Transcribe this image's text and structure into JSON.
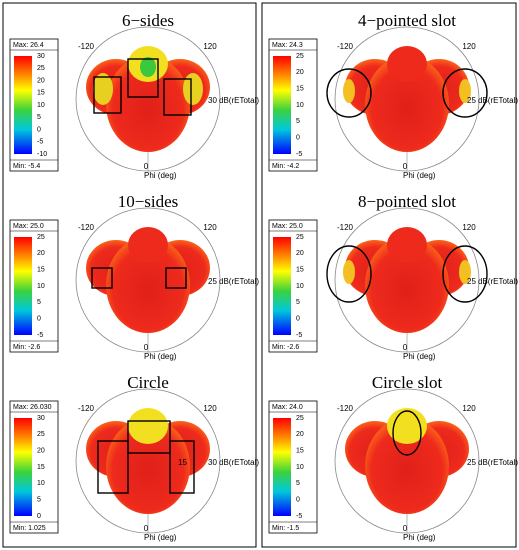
{
  "panels": [
    {
      "title": "6−sides",
      "max": "Max: 26.4",
      "min": "Min: -5.4",
      "scale": [
        "30",
        "25",
        "20",
        "15",
        "10",
        "5",
        "0",
        "-5",
        "-10"
      ],
      "minus": "-120",
      "plus": "120",
      "ring": [
        "30"
      ],
      "unit": "dB(rETotal)",
      "zero": "0",
      "axis": "Phi (deg)"
    },
    {
      "title": "10−sides",
      "max": "Max: 25.0",
      "min": "Min: -2.6",
      "scale": [
        "25",
        "20",
        "15",
        "10",
        "5",
        "0",
        "-5"
      ],
      "minus": "-120",
      "plus": "120",
      "ring": [
        "25"
      ],
      "unit": "dB(rETotal)",
      "zero": "0",
      "axis": "Phi (deg)"
    },
    {
      "title": "Circle",
      "max": "Max: 26.030",
      "min": "Min: 1.025",
      "scale": [
        "30",
        "25",
        "20",
        "15",
        "10",
        "5",
        "0"
      ],
      "minus": "-120",
      "plus": "120",
      "ring": [
        "15",
        "30"
      ],
      "unit": "dB(rETotal)",
      "zero": "0",
      "axis": "Phi (deg)"
    },
    {
      "title": "4−pointed slot",
      "max": "Max: 24.3",
      "min": "Min: -4.2",
      "scale": [
        "25",
        "20",
        "15",
        "10",
        "5",
        "0",
        "-5"
      ],
      "minus": "-120",
      "plus": "120",
      "ring": [
        "25"
      ],
      "unit": "dB(rETotal)",
      "zero": "0",
      "axis": "Phi (deg)"
    },
    {
      "title": "8−pointed slot",
      "max": "Max: 25.0",
      "min": "Min: -2.6",
      "scale": [
        "25",
        "20",
        "15",
        "10",
        "5",
        "0",
        "-5"
      ],
      "minus": "-120",
      "plus": "120",
      "ring": [
        "25"
      ],
      "unit": "dB(rETotal)",
      "zero": "0",
      "axis": "Phi (deg)"
    },
    {
      "title": "Circle slot",
      "max": "Max: 24.0",
      "min": "Min: -1.5",
      "scale": [
        "25",
        "20",
        "15",
        "10",
        "5",
        "0",
        "-5"
      ],
      "minus": "-120",
      "plus": "120",
      "ring": [
        "25"
      ],
      "unit": "dB(rETotal)",
      "zero": "0",
      "axis": "Phi (deg)"
    }
  ]
}
